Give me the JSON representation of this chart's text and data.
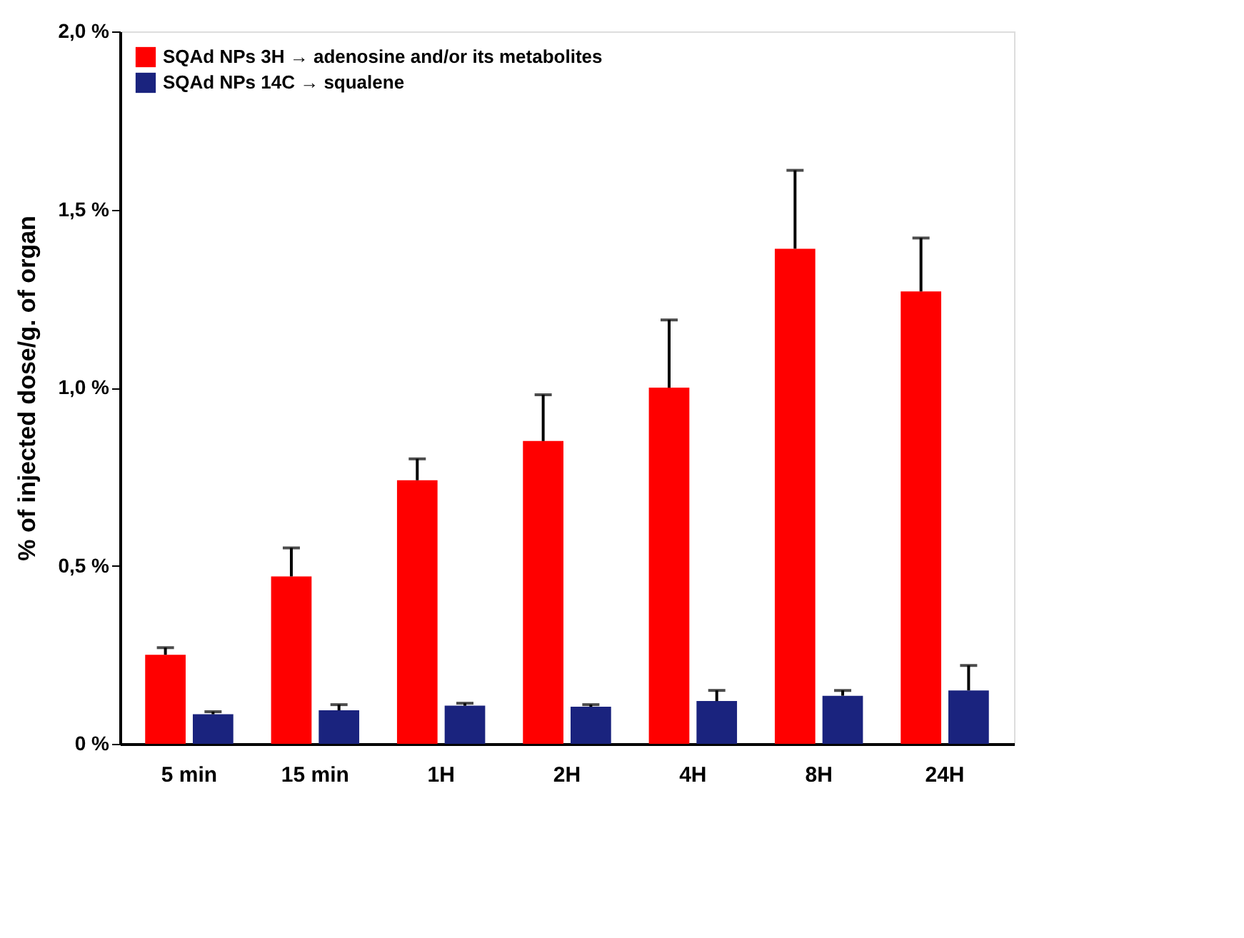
{
  "chart_data": {
    "type": "bar",
    "ylabel": "% of injected dose/g. of organ",
    "categories": [
      "5 min",
      "15 min",
      "1H",
      "2H",
      "4H",
      "8H",
      "24H"
    ],
    "series": [
      {
        "name": "SQAd NPs 3H → adenosine and/or its metabolites",
        "color": "#ff0000",
        "values": [
          0.25,
          0.47,
          0.74,
          0.85,
          1.0,
          1.39,
          1.27
        ],
        "errors": [
          [
            0.25,
            0.27
          ],
          [
            0.47,
            0.55
          ],
          [
            0.74,
            0.8
          ],
          [
            0.85,
            0.98
          ],
          [
            1.0,
            1.19
          ],
          [
            1.39,
            1.61
          ],
          [
            1.27,
            1.42
          ]
        ]
      },
      {
        "name": "SQAd NPs 14C → squalene",
        "color": "#1a237e",
        "values": [
          0.083,
          0.094,
          0.107,
          0.104,
          0.12,
          0.135,
          0.15
        ],
        "errors": [
          [
            0.083,
            0.09
          ],
          [
            0.094,
            0.11
          ],
          [
            0.107,
            0.114
          ],
          [
            0.104,
            0.11
          ],
          [
            0.12,
            0.15
          ],
          [
            0.135,
            0.15
          ],
          [
            0.15,
            0.22
          ]
        ]
      }
    ],
    "ylim": [
      0,
      2.0
    ],
    "yticks": [
      {
        "value": 0,
        "label": "0 %"
      },
      {
        "value": 0.5,
        "label": "0,5 %"
      },
      {
        "value": 1.0,
        "label": "1,0 %"
      },
      {
        "value": 1.5,
        "label": "1,5 %"
      },
      {
        "value": 2.0,
        "label": "2,0 %"
      }
    ],
    "grid": false,
    "legend": "top left"
  }
}
